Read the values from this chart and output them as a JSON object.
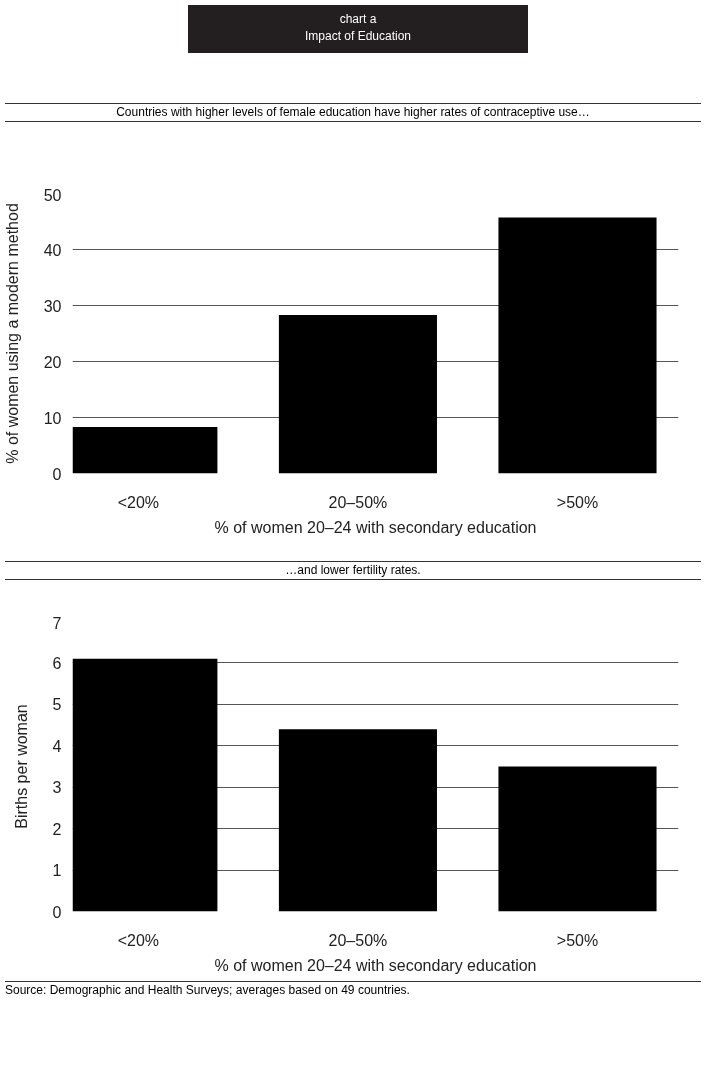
{
  "chart_data": [
    {
      "type": "bar",
      "title": "Impact of Education",
      "subtitle": "Countries with higher levels of female education have higher rates of contraceptive use…",
      "annotations": [
        "chart a"
      ],
      "categories": [
        "<20%",
        "20–50%",
        ">50%"
      ],
      "values": [
        8.3,
        28.3,
        45.7
      ],
      "color": "#000000",
      "xlabel": "% of women 20–24 with secondary education",
      "ylabel": "% of women using a modern method",
      "ylim": [
        0,
        50
      ],
      "yticks": [
        0,
        10,
        20,
        30,
        40,
        50
      ],
      "grid": "y",
      "legend": false
    },
    {
      "type": "bar",
      "subtitle": "…and lower fertility rates.",
      "annotations": [
        "Source: Demographic and Health Surveys; averages based on 49 countries."
      ],
      "categories": [
        "<20%",
        "20–50%",
        ">50%"
      ],
      "values": [
        6.1,
        4.4,
        3.5
      ],
      "color": "#000000",
      "xlabel": "% of women 20–24 with secondary education",
      "ylabel": "Births per woman",
      "ylim": [
        0,
        7
      ],
      "yticks": [
        0,
        1,
        2,
        3,
        4,
        5,
        6,
        7
      ],
      "grid": "y",
      "legend": false
    }
  ]
}
